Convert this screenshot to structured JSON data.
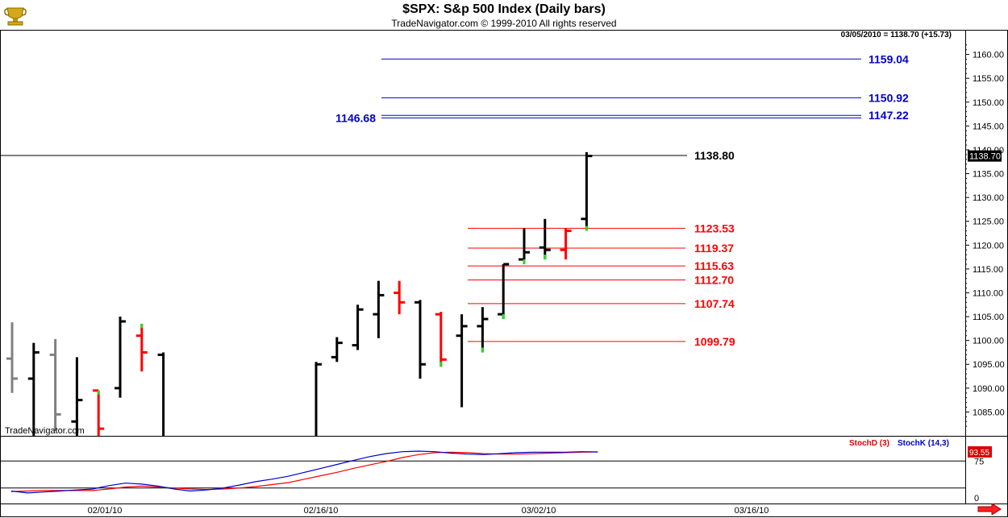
{
  "header": {
    "title": "$SPX:  S&p 500 Index  (Daily bars)",
    "copyright": "TradeNavigator.com © 1999-2010 All rights reserved",
    "last_bar_info": "03/05/2010 = 1138.70 (+15.73)"
  },
  "watermark": "TradeNavigator.com",
  "colors": {
    "up_bar": "#000000",
    "down_bar": "#ff0000",
    "up_tick": "#22dd22",
    "gray_bar": "#808080",
    "blue_level": "#0000cc",
    "red_level": "#ff0000",
    "stochD": "#e00000",
    "stochK": "#0000cc",
    "last_price_box": "#000000",
    "stoch_value_box": "#dd0000"
  },
  "chart_data": [
    {
      "type": "ohlc",
      "title": "$SPX:  S&p 500 Index  (Daily bars)",
      "ylim": [
        1080,
        1165
      ],
      "y_ticks": [
        "1085.00",
        "1090.00",
        "1095.00",
        "1100.00",
        "1105.00",
        "1110.00",
        "1115.00",
        "1120.00",
        "1125.00",
        "1130.00",
        "1135.00",
        "1140.00",
        "1145.00",
        "1150.00",
        "1155.00",
        "1160.00"
      ],
      "x_ticks": [
        "02/01/10",
        "02/16/10",
        "03/02/10",
        "03/16/10"
      ],
      "last_price_label": "1138.70",
      "bars": [
        {
          "o": 1096.2,
          "h": 1103.8,
          "l": 1089.0,
          "c": 1092.0,
          "color": "gray"
        },
        {
          "o": 1092.0,
          "h": 1099.5,
          "l": 1073.0,
          "c": 1097.5,
          "color": "black"
        },
        {
          "o": 1097.0,
          "h": 1100.3,
          "l": 1081.0,
          "c": 1084.5,
          "color": "gray"
        },
        {
          "o": 1083.0,
          "h": 1096.5,
          "l": 1070.0,
          "c": 1087.5,
          "color": "black"
        },
        {
          "o": 1089.5,
          "h": 1089.5,
          "l": 1075.0,
          "c": 1081.5,
          "color": "red"
        },
        {
          "o": 1090.0,
          "h": 1105.0,
          "l": 1088.0,
          "c": 1104.0,
          "color": "black"
        },
        {
          "o": 1101.0,
          "h": 1103.5,
          "l": 1093.5,
          "c": 1097.5,
          "color": "red"
        },
        {
          "o": 1097.0,
          "h": 1097.5,
          "l": 1075.0,
          "c": 1076.0,
          "color": "black"
        },
        {
          "o": 1075.0,
          "h": 1095.5,
          "l": 1075.0,
          "c": 1095.0,
          "color": "black"
        },
        {
          "o": 1096.5,
          "h": 1100.7,
          "l": 1095.5,
          "c": 1099.5,
          "color": "black"
        },
        {
          "o": 1099.0,
          "h": 1107.5,
          "l": 1098.0,
          "c": 1106.5,
          "color": "black"
        },
        {
          "o": 1105.5,
          "h": 1112.5,
          "l": 1100.5,
          "c": 1109.5,
          "color": "black"
        },
        {
          "o": 1110.0,
          "h": 1112.5,
          "l": 1105.5,
          "c": 1108.0,
          "color": "red"
        },
        {
          "o": 1108.0,
          "h": 1108.5,
          "l": 1092.0,
          "c": 1095.0,
          "color": "black"
        },
        {
          "o": 1105.5,
          "h": 1106.0,
          "l": 1094.5,
          "c": 1096.0,
          "color": "red"
        },
        {
          "o": 1101.0,
          "h": 1105.5,
          "l": 1086.0,
          "c": 1103.0,
          "color": "black"
        },
        {
          "o": 1103.0,
          "h": 1107.0,
          "l": 1097.5,
          "c": 1104.5,
          "color": "black"
        },
        {
          "o": 1105.5,
          "h": 1116.0,
          "l": 1104.5,
          "c": 1116.0,
          "color": "black"
        },
        {
          "o": 1117.0,
          "h": 1123.5,
          "l": 1116.0,
          "c": 1118.5,
          "color": "black"
        },
        {
          "o": 1119.5,
          "h": 1125.5,
          "l": 1117.0,
          "c": 1119.0,
          "color": "black"
        },
        {
          "o": 1119.0,
          "h": 1123.5,
          "l": 1117.0,
          "c": 1123.0,
          "color": "red"
        },
        {
          "o": 1125.5,
          "h": 1139.5,
          "l": 1123.0,
          "c": 1138.7,
          "color": "black"
        }
      ],
      "levels": [
        {
          "value": 1159.04,
          "label": "1159.04",
          "side": "right",
          "color": "blue",
          "start": "mid"
        },
        {
          "value": 1150.92,
          "label": "1150.92",
          "side": "right",
          "color": "blue",
          "start": "mid"
        },
        {
          "value": 1147.22,
          "label": "1147.22",
          "side": "right",
          "color": "blue",
          "start": "mid"
        },
        {
          "value": 1146.68,
          "label": "1146.68",
          "side": "left",
          "color": "blue",
          "start": "mid"
        },
        {
          "value": 1138.8,
          "label": "1138.80",
          "side": "right",
          "color": "black",
          "start": "edge"
        },
        {
          "value": 1123.53,
          "label": "1123.53",
          "side": "right",
          "color": "red",
          "start": "late"
        },
        {
          "value": 1119.37,
          "label": "1119.37",
          "side": "right",
          "color": "red",
          "start": "late"
        },
        {
          "value": 1115.63,
          "label": "1115.63",
          "side": "right",
          "color": "red",
          "start": "late"
        },
        {
          "value": 1112.7,
          "label": "1112.70",
          "side": "right",
          "color": "red",
          "start": "late"
        },
        {
          "value": 1107.74,
          "label": "1107.74",
          "side": "right",
          "color": "red",
          "start": "late"
        },
        {
          "value": 1099.79,
          "label": "1099.79",
          "side": "right",
          "color": "red",
          "start": "late"
        }
      ]
    },
    {
      "type": "line",
      "title": "",
      "ylim": [
        0,
        100
      ],
      "y_ticks": [
        "75",
        "0"
      ],
      "reference_lines": [
        75,
        20
      ],
      "value_box_label": "93.55",
      "series": [
        {
          "name": "StochD (3)",
          "color": "red",
          "values": [
            13,
            14,
            15,
            15,
            15,
            15,
            18,
            22,
            24,
            22,
            20,
            18,
            17,
            18,
            20,
            23,
            27,
            31,
            38,
            45,
            52,
            60,
            67,
            74,
            82,
            88,
            92,
            93,
            92,
            90,
            89,
            89,
            90,
            91,
            92,
            93,
            93.5
          ]
        },
        {
          "name": "StochK (14,3)",
          "color": "blue",
          "values": [
            14,
            10,
            12,
            14,
            16,
            18,
            25,
            30,
            28,
            24,
            18,
            14,
            16,
            20,
            26,
            33,
            38,
            44,
            52,
            60,
            68,
            76,
            84,
            90,
            94,
            95,
            94,
            91,
            89,
            88,
            90,
            92,
            93,
            93,
            93,
            94,
            93.5
          ]
        }
      ]
    }
  ]
}
